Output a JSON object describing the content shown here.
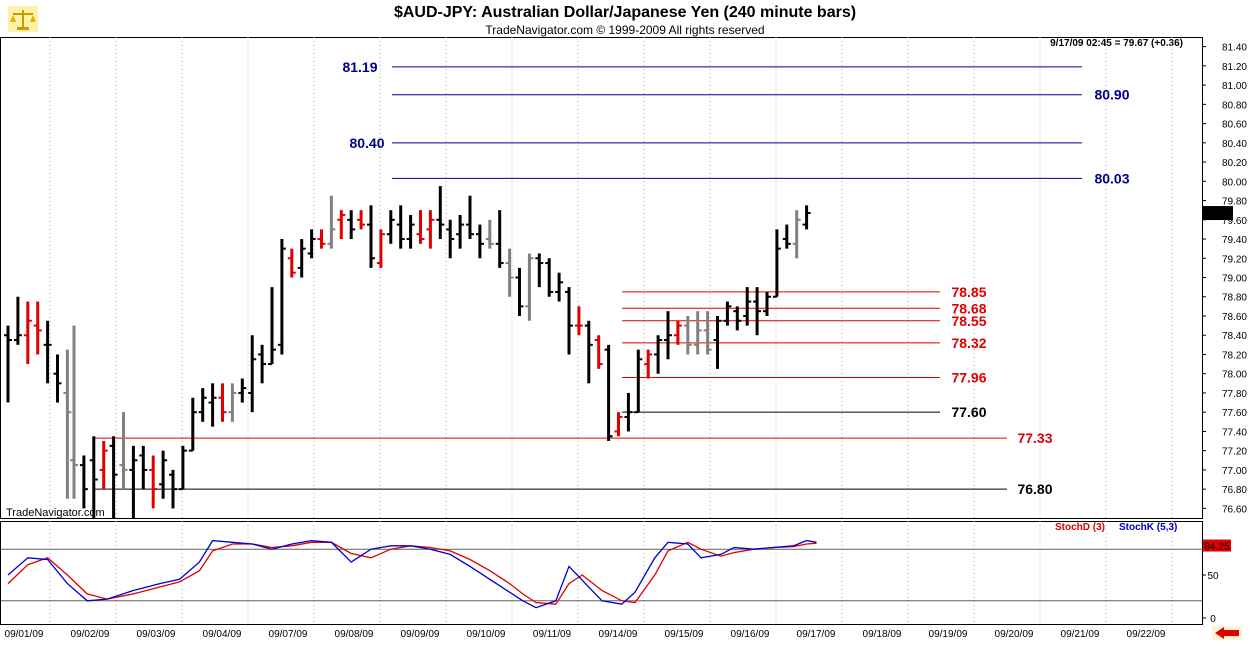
{
  "header": {
    "title": "$AUD-JPY:  Australian Dollar/Japanese Yen  (240 minute bars)",
    "subtitle": "TradeNavigator.com © 1999-2009 All rights reserved",
    "info": "9/17/09 02:45 = 79.67 (+0.36)",
    "logo_icon": "scales-icon",
    "watermark": "TradeNavigator.com",
    "nav_icon": "left-arrow-icon"
  },
  "colors": {
    "bar_up": "#000000",
    "bar_down": "#e00000",
    "bar_gray": "#808080",
    "blue_level": "#00008b",
    "red_level": "#e00000",
    "black_level": "#000000",
    "stoch_d": "#e00000",
    "stoch_k": "#0000cc",
    "last_price_bg": "#000000",
    "stoch_value_bg": "#e00000"
  },
  "chart_data": {
    "type": "ohlc",
    "price_axis": {
      "ylim": [
        76.5,
        81.5
      ],
      "ticks": [
        "81.40",
        "81.20",
        "81.00",
        "80.80",
        "80.60",
        "80.40",
        "80.20",
        "80.00",
        "79.80",
        "79.60",
        "79.40",
        "79.20",
        "79.00",
        "78.80",
        "78.60",
        "78.40",
        "78.20",
        "78.00",
        "77.80",
        "77.60",
        "77.40",
        "77.20",
        "77.00",
        "76.80",
        "76.60"
      ],
      "last_price": "79.67",
      "last_price_value": 79.67
    },
    "dates": [
      "09/01/09",
      "09/02/09",
      "09/03/09",
      "09/04/09",
      "09/07/09",
      "09/08/09",
      "09/09/09",
      "09/10/09",
      "09/11/09",
      "09/14/09",
      "09/15/09",
      "09/16/09",
      "09/17/09",
      "09/18/09",
      "09/19/09",
      "09/20/09",
      "09/21/09",
      "09/22/09"
    ],
    "bars": [
      {
        "o": 78.4,
        "h": 78.5,
        "l": 77.7,
        "c": 78.35,
        "d": 0,
        "col": "u"
      },
      {
        "o": 78.35,
        "h": 78.8,
        "l": 78.3,
        "c": 78.4,
        "d": 0.15,
        "col": "u"
      },
      {
        "o": 78.4,
        "h": 78.75,
        "l": 78.1,
        "c": 78.55,
        "d": 0.3,
        "col": "d"
      },
      {
        "o": 78.5,
        "h": 78.75,
        "l": 78.2,
        "c": 78.45,
        "d": 0.45,
        "col": "d"
      },
      {
        "o": 78.3,
        "h": 78.55,
        "l": 77.9,
        "c": 78.3,
        "d": 0.6,
        "col": "u"
      },
      {
        "o": 78.0,
        "h": 78.2,
        "l": 77.7,
        "c": 77.9,
        "d": 0.75,
        "col": "u"
      },
      {
        "o": 77.8,
        "h": 78.25,
        "l": 76.7,
        "c": 77.6,
        "d": 0.9,
        "col": "g"
      },
      {
        "o": 77.1,
        "h": 78.5,
        "l": 76.7,
        "c": 77.05,
        "d": 1.0,
        "col": "g"
      },
      {
        "o": 77.05,
        "h": 77.15,
        "l": 76.6,
        "c": 76.8,
        "d": 1.15,
        "col": "u"
      },
      {
        "o": 77.1,
        "h": 77.35,
        "l": 76.5,
        "c": 76.9,
        "d": 1.3,
        "col": "u"
      },
      {
        "o": 77.0,
        "h": 77.3,
        "l": 76.8,
        "c": 77.2,
        "d": 1.45,
        "col": "d"
      },
      {
        "o": 77.25,
        "h": 77.35,
        "l": 76.5,
        "c": 76.95,
        "d": 1.6,
        "col": "u"
      },
      {
        "o": 77.05,
        "h": 77.6,
        "l": 76.8,
        "c": 77.0,
        "d": 1.75,
        "col": "g"
      },
      {
        "o": 77.0,
        "h": 77.25,
        "l": 76.5,
        "c": 77.1,
        "d": 1.9,
        "col": "u"
      },
      {
        "o": 77.15,
        "h": 77.25,
        "l": 76.8,
        "c": 77.0,
        "d": 2.05,
        "col": "u"
      },
      {
        "o": 77.0,
        "h": 77.15,
        "l": 76.6,
        "c": 76.8,
        "d": 2.2,
        "col": "d"
      },
      {
        "o": 76.85,
        "h": 77.2,
        "l": 76.7,
        "c": 77.1,
        "d": 2.35,
        "col": "u"
      },
      {
        "o": 76.95,
        "h": 77.0,
        "l": 76.6,
        "c": 76.8,
        "d": 2.5,
        "col": "u"
      },
      {
        "o": 76.8,
        "h": 77.25,
        "l": 76.8,
        "c": 77.2,
        "d": 2.65,
        "col": "u"
      },
      {
        "o": 77.2,
        "h": 77.75,
        "l": 77.2,
        "c": 77.6,
        "d": 2.8,
        "col": "u"
      },
      {
        "o": 77.6,
        "h": 77.85,
        "l": 77.5,
        "c": 77.75,
        "d": 2.95,
        "col": "u"
      },
      {
        "o": 77.7,
        "h": 77.9,
        "l": 77.45,
        "c": 77.75,
        "d": 3.1,
        "col": "u"
      },
      {
        "o": 77.75,
        "h": 77.9,
        "l": 77.5,
        "c": 77.6,
        "d": 3.25,
        "col": "d"
      },
      {
        "o": 77.6,
        "h": 77.9,
        "l": 77.5,
        "c": 77.8,
        "d": 3.4,
        "col": "g"
      },
      {
        "o": 77.8,
        "h": 77.95,
        "l": 77.7,
        "c": 77.85,
        "d": 3.55,
        "col": "u"
      },
      {
        "o": 77.8,
        "h": 78.4,
        "l": 77.6,
        "c": 78.15,
        "d": 3.7,
        "col": "u"
      },
      {
        "o": 78.2,
        "h": 78.3,
        "l": 77.9,
        "c": 78.1,
        "d": 3.85,
        "col": "u"
      },
      {
        "o": 78.1,
        "h": 78.9,
        "l": 78.1,
        "c": 78.25,
        "d": 4.0,
        "col": "u"
      },
      {
        "o": 78.3,
        "h": 79.4,
        "l": 78.2,
        "c": 79.3,
        "d": 4.15,
        "col": "u"
      },
      {
        "o": 79.2,
        "h": 79.3,
        "l": 79.0,
        "c": 79.05,
        "d": 4.3,
        "col": "d"
      },
      {
        "o": 79.1,
        "h": 79.4,
        "l": 79.0,
        "c": 79.3,
        "d": 4.45,
        "col": "u"
      },
      {
        "o": 79.25,
        "h": 79.5,
        "l": 79.2,
        "c": 79.4,
        "d": 4.6,
        "col": "u"
      },
      {
        "o": 79.4,
        "h": 79.5,
        "l": 79.3,
        "c": 79.35,
        "d": 4.75,
        "col": "d"
      },
      {
        "o": 79.35,
        "h": 79.85,
        "l": 79.3,
        "c": 79.5,
        "d": 4.9,
        "col": "g"
      },
      {
        "o": 79.6,
        "h": 79.7,
        "l": 79.4,
        "c": 79.65,
        "d": 5.05,
        "col": "d"
      },
      {
        "o": 79.6,
        "h": 79.7,
        "l": 79.4,
        "c": 79.5,
        "d": 5.2,
        "col": "u"
      },
      {
        "o": 79.6,
        "h": 79.7,
        "l": 79.5,
        "c": 79.55,
        "d": 5.35,
        "col": "d"
      },
      {
        "o": 79.55,
        "h": 79.75,
        "l": 79.1,
        "c": 79.2,
        "d": 5.5,
        "col": "u"
      },
      {
        "o": 79.15,
        "h": 79.5,
        "l": 79.1,
        "c": 79.45,
        "d": 5.65,
        "col": "d"
      },
      {
        "o": 79.45,
        "h": 79.7,
        "l": 79.35,
        "c": 79.6,
        "d": 5.8,
        "col": "u"
      },
      {
        "o": 79.55,
        "h": 79.75,
        "l": 79.3,
        "c": 79.4,
        "d": 5.95,
        "col": "u"
      },
      {
        "o": 79.4,
        "h": 79.65,
        "l": 79.3,
        "c": 79.55,
        "d": 6.1,
        "col": "u"
      },
      {
        "o": 79.45,
        "h": 79.7,
        "l": 79.35,
        "c": 79.4,
        "d": 6.25,
        "col": "d"
      },
      {
        "o": 79.5,
        "h": 79.7,
        "l": 79.3,
        "c": 79.6,
        "d": 6.4,
        "col": "d"
      },
      {
        "o": 79.6,
        "h": 79.95,
        "l": 79.4,
        "c": 79.55,
        "d": 6.55,
        "col": "u"
      },
      {
        "o": 79.5,
        "h": 79.6,
        "l": 79.2,
        "c": 79.4,
        "d": 6.7,
        "col": "u"
      },
      {
        "o": 79.45,
        "h": 79.65,
        "l": 79.3,
        "c": 79.55,
        "d": 6.85,
        "col": "u"
      },
      {
        "o": 79.55,
        "h": 79.85,
        "l": 79.4,
        "c": 79.45,
        "d": 7.0,
        "col": "u"
      },
      {
        "o": 79.45,
        "h": 79.55,
        "l": 79.2,
        "c": 79.35,
        "d": 7.15,
        "col": "u"
      },
      {
        "o": 79.4,
        "h": 79.6,
        "l": 79.3,
        "c": 79.35,
        "d": 7.3,
        "col": "g"
      },
      {
        "o": 79.35,
        "h": 79.7,
        "l": 79.1,
        "c": 79.15,
        "d": 7.45,
        "col": "u"
      },
      {
        "o": 79.15,
        "h": 79.3,
        "l": 78.8,
        "c": 79.0,
        "d": 7.6,
        "col": "g"
      },
      {
        "o": 79.0,
        "h": 79.1,
        "l": 78.6,
        "c": 78.7,
        "d": 7.75,
        "col": "u"
      },
      {
        "o": 78.7,
        "h": 79.25,
        "l": 78.55,
        "c": 79.2,
        "d": 7.9,
        "col": "g"
      },
      {
        "o": 79.2,
        "h": 79.25,
        "l": 78.9,
        "c": 79.15,
        "d": 8.05,
        "col": "u"
      },
      {
        "o": 79.15,
        "h": 79.2,
        "l": 78.8,
        "c": 78.85,
        "d": 8.2,
        "col": "u"
      },
      {
        "o": 78.85,
        "h": 79.05,
        "l": 78.75,
        "c": 78.95,
        "d": 8.35,
        "col": "u"
      },
      {
        "o": 78.85,
        "h": 78.9,
        "l": 78.2,
        "c": 78.5,
        "d": 8.5,
        "col": "u"
      },
      {
        "o": 78.5,
        "h": 78.7,
        "l": 78.4,
        "c": 78.5,
        "d": 8.65,
        "col": "d"
      },
      {
        "o": 78.5,
        "h": 78.55,
        "l": 77.9,
        "c": 78.3,
        "d": 8.8,
        "col": "u"
      },
      {
        "o": 78.35,
        "h": 78.4,
        "l": 78.05,
        "c": 78.1,
        "d": 8.95,
        "col": "d"
      },
      {
        "o": 78.25,
        "h": 78.3,
        "l": 77.3,
        "c": 77.35,
        "d": 9.1,
        "col": "u"
      },
      {
        "o": 77.4,
        "h": 77.6,
        "l": 77.35,
        "c": 77.55,
        "d": 9.25,
        "col": "d"
      },
      {
        "o": 77.55,
        "h": 77.8,
        "l": 77.4,
        "c": 77.6,
        "d": 9.4,
        "col": "u"
      },
      {
        "o": 77.6,
        "h": 78.25,
        "l": 77.6,
        "c": 78.15,
        "d": 9.55,
        "col": "u"
      },
      {
        "o": 78.1,
        "h": 78.25,
        "l": 77.95,
        "c": 78.2,
        "d": 9.7,
        "col": "d"
      },
      {
        "o": 78.2,
        "h": 78.4,
        "l": 78.0,
        "c": 78.35,
        "d": 9.85,
        "col": "u"
      },
      {
        "o": 78.35,
        "h": 78.65,
        "l": 78.15,
        "c": 78.4,
        "d": 10.0,
        "col": "u"
      },
      {
        "o": 78.4,
        "h": 78.55,
        "l": 78.3,
        "c": 78.5,
        "d": 10.15,
        "col": "d"
      },
      {
        "o": 78.5,
        "h": 78.6,
        "l": 78.2,
        "c": 78.3,
        "d": 10.3,
        "col": "g"
      },
      {
        "o": 78.3,
        "h": 78.65,
        "l": 78.2,
        "c": 78.45,
        "d": 10.45,
        "col": "g"
      },
      {
        "o": 78.45,
        "h": 78.65,
        "l": 78.2,
        "c": 78.25,
        "d": 10.6,
        "col": "g"
      },
      {
        "o": 78.35,
        "h": 78.6,
        "l": 78.05,
        "c": 78.55,
        "d": 10.75,
        "col": "u"
      },
      {
        "o": 78.55,
        "h": 78.75,
        "l": 78.5,
        "c": 78.7,
        "d": 10.9,
        "col": "u"
      },
      {
        "o": 78.65,
        "h": 78.7,
        "l": 78.45,
        "c": 78.55,
        "d": 11.05,
        "col": "u"
      },
      {
        "o": 78.6,
        "h": 78.9,
        "l": 78.5,
        "c": 78.75,
        "d": 11.2,
        "col": "u"
      },
      {
        "o": 78.75,
        "h": 78.9,
        "l": 78.4,
        "c": 78.65,
        "d": 11.35,
        "col": "u"
      },
      {
        "o": 78.65,
        "h": 78.85,
        "l": 78.6,
        "c": 78.8,
        "d": 11.5,
        "col": "u"
      },
      {
        "o": 78.8,
        "h": 79.5,
        "l": 78.8,
        "c": 79.3,
        "d": 11.65,
        "col": "u"
      },
      {
        "o": 79.4,
        "h": 79.55,
        "l": 79.3,
        "c": 79.35,
        "d": 11.8,
        "col": "u"
      },
      {
        "o": 79.35,
        "h": 79.7,
        "l": 79.2,
        "c": 79.6,
        "d": 11.95,
        "col": "g"
      },
      {
        "o": 79.55,
        "h": 79.75,
        "l": 79.5,
        "c": 79.67,
        "d": 12.1,
        "col": "u"
      }
    ],
    "levels": [
      {
        "value": 81.19,
        "label": "81.19",
        "color": "blue",
        "label_side": "left"
      },
      {
        "value": 80.9,
        "label": "80.90",
        "color": "blue",
        "label_side": "right"
      },
      {
        "value": 80.4,
        "label": "80.40",
        "color": "blue",
        "label_side": "left"
      },
      {
        "value": 80.03,
        "label": "80.03",
        "color": "blue",
        "label_side": "right"
      },
      {
        "value": 78.85,
        "label": "78.85",
        "color": "red",
        "label_side": "right"
      },
      {
        "value": 78.68,
        "label": "78.68",
        "color": "red",
        "label_side": "right"
      },
      {
        "value": 78.55,
        "label": "78.55",
        "color": "red",
        "label_side": "right"
      },
      {
        "value": 78.32,
        "label": "78.32",
        "color": "red",
        "label_side": "right"
      },
      {
        "value": 77.96,
        "label": "77.96",
        "color": "red",
        "label_side": "right"
      },
      {
        "value": 77.6,
        "label": "77.60",
        "color": "black",
        "label_side": "right"
      },
      {
        "value": 77.33,
        "label": "77.33",
        "color": "red",
        "label_side": "right"
      },
      {
        "value": 76.8,
        "label": "76.80",
        "color": "black",
        "label_side": "right"
      }
    ],
    "stochastics": {
      "legend_d": "StochD (3)",
      "legend_k": "StochK (5,3)",
      "ylim": [
        0,
        100
      ],
      "ticks": [
        "50",
        "0"
      ],
      "value": "84.25",
      "value_num": 84.25,
      "upper_line": 80,
      "lower_line": 20,
      "k": [
        [
          0,
          50
        ],
        [
          0.3,
          70
        ],
        [
          0.6,
          68
        ],
        [
          0.9,
          40
        ],
        [
          1.2,
          20
        ],
        [
          1.5,
          22
        ],
        [
          1.9,
          32
        ],
        [
          2.3,
          40
        ],
        [
          2.6,
          45
        ],
        [
          2.9,
          65
        ],
        [
          3.1,
          90
        ],
        [
          3.4,
          88
        ],
        [
          3.7,
          86
        ],
        [
          4.0,
          80
        ],
        [
          4.3,
          86
        ],
        [
          4.6,
          90
        ],
        [
          4.9,
          88
        ],
        [
          5.2,
          65
        ],
        [
          5.5,
          80
        ],
        [
          5.8,
          84
        ],
        [
          6.1,
          84
        ],
        [
          6.4,
          80
        ],
        [
          6.7,
          74
        ],
        [
          7.0,
          60
        ],
        [
          7.3,
          45
        ],
        [
          7.6,
          30
        ],
        [
          7.8,
          20
        ],
        [
          8.0,
          12
        ],
        [
          8.3,
          20
        ],
        [
          8.5,
          60
        ],
        [
          8.7,
          44
        ],
        [
          9.0,
          20
        ],
        [
          9.3,
          16
        ],
        [
          9.5,
          30
        ],
        [
          9.8,
          70
        ],
        [
          10.0,
          88
        ],
        [
          10.3,
          86
        ],
        [
          10.5,
          70
        ],
        [
          10.8,
          74
        ],
        [
          11.0,
          82
        ],
        [
          11.3,
          80
        ],
        [
          11.6,
          82
        ],
        [
          11.9,
          84
        ],
        [
          12.1,
          90
        ],
        [
          12.25,
          88
        ]
      ],
      "d": [
        [
          0,
          40
        ],
        [
          0.3,
          62
        ],
        [
          0.6,
          70
        ],
        [
          0.9,
          50
        ],
        [
          1.2,
          28
        ],
        [
          1.5,
          22
        ],
        [
          1.9,
          28
        ],
        [
          2.3,
          36
        ],
        [
          2.6,
          42
        ],
        [
          2.9,
          55
        ],
        [
          3.1,
          78
        ],
        [
          3.4,
          86
        ],
        [
          3.7,
          86
        ],
        [
          4.0,
          82
        ],
        [
          4.3,
          84
        ],
        [
          4.6,
          88
        ],
        [
          4.9,
          88
        ],
        [
          5.2,
          75
        ],
        [
          5.5,
          70
        ],
        [
          5.8,
          80
        ],
        [
          6.1,
          84
        ],
        [
          6.4,
          82
        ],
        [
          6.7,
          78
        ],
        [
          7.0,
          68
        ],
        [
          7.3,
          55
        ],
        [
          7.6,
          40
        ],
        [
          7.8,
          28
        ],
        [
          8.0,
          18
        ],
        [
          8.3,
          16
        ],
        [
          8.5,
          40
        ],
        [
          8.7,
          50
        ],
        [
          9.0,
          32
        ],
        [
          9.3,
          20
        ],
        [
          9.5,
          18
        ],
        [
          9.8,
          50
        ],
        [
          10.0,
          78
        ],
        [
          10.3,
          88
        ],
        [
          10.5,
          80
        ],
        [
          10.8,
          72
        ],
        [
          11.0,
          76
        ],
        [
          11.3,
          80
        ],
        [
          11.6,
          82
        ],
        [
          11.9,
          83
        ],
        [
          12.1,
          86
        ],
        [
          12.25,
          87
        ]
      ]
    }
  }
}
